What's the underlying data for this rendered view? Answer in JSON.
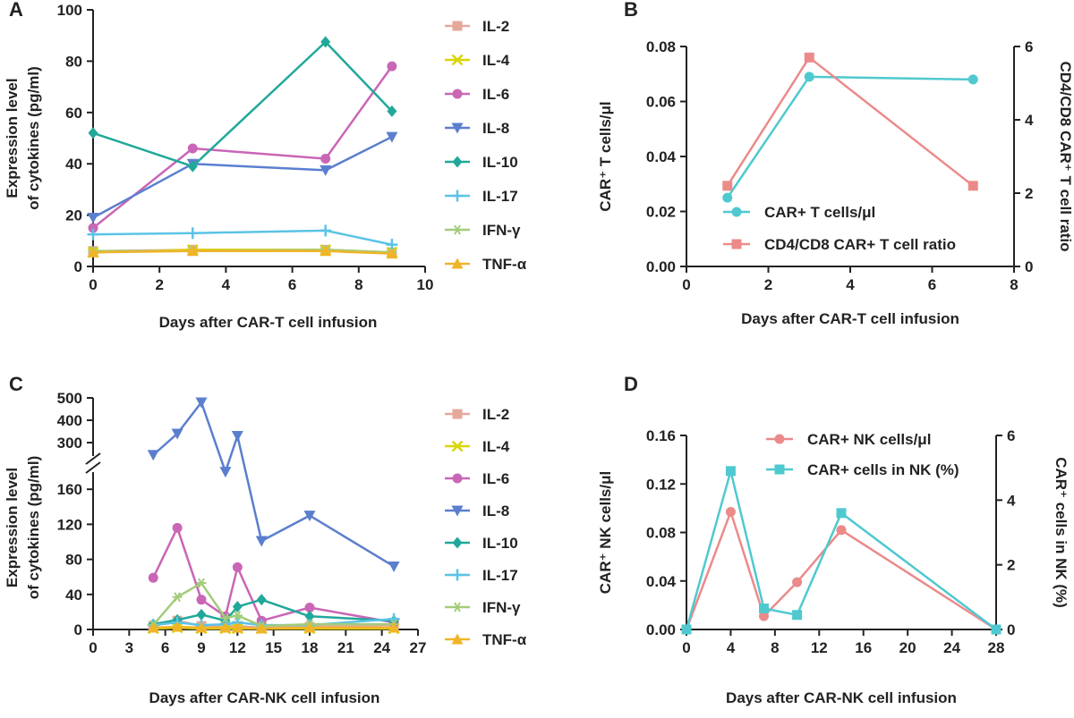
{
  "chart_data": [
    {
      "panel": "A",
      "type": "line",
      "xlabel": "Days after CAR-T cell infusion",
      "ylabel": [
        "Expression level",
        "of cytokines (pg/ml)"
      ],
      "xlim": [
        0,
        10
      ],
      "ylim": [
        0,
        100
      ],
      "xticks": [
        "0",
        "2",
        "4",
        "6",
        "8",
        "10"
      ],
      "yticks": [
        "0",
        "20",
        "40",
        "60",
        "80",
        "100"
      ],
      "x": [
        0,
        3,
        7,
        9
      ],
      "series": [
        {
          "name": "IL-2",
          "color": "#e6a89a",
          "marker": "square",
          "values": [
            6,
            6.5,
            6.5,
            5.5
          ]
        },
        {
          "name": "IL-4",
          "color": "#d9d600",
          "marker": "x",
          "values": [
            5.5,
            6.5,
            6.5,
            5.5
          ]
        },
        {
          "name": "IL-6",
          "color": "#c966b6",
          "marker": "circle",
          "values": [
            15,
            46,
            42,
            78
          ]
        },
        {
          "name": "IL-8",
          "color": "#5b7fcf",
          "marker": "tri-down",
          "values": [
            19,
            40,
            37.5,
            50.5
          ]
        },
        {
          "name": "IL-10",
          "color": "#21a89a",
          "marker": "diamond",
          "values": [
            52,
            39,
            87.5,
            60.5
          ]
        },
        {
          "name": "IL-17",
          "color": "#5bc3e6",
          "marker": "plus",
          "values": [
            12.5,
            13,
            14,
            8.5
          ]
        },
        {
          "name": "IFN-γ",
          "color": "#a3cc7a",
          "marker": "star",
          "values": [
            6,
            6,
            6.5,
            5.5
          ]
        },
        {
          "name": "TNF-α",
          "color": "#f0b428",
          "marker": "tri-up",
          "values": [
            5.5,
            6,
            6,
            5
          ]
        }
      ]
    },
    {
      "panel": "B",
      "type": "line",
      "xlabel": "Days after CAR-T cell infusion",
      "ylabel": "CAR⁺ T cells/μl",
      "ylabel_right": "CD4/CD8 CAR⁺ T cell ratio",
      "xlim": [
        0,
        8
      ],
      "ylim": [
        0,
        0.08
      ],
      "ylim_right": [
        0,
        6
      ],
      "xticks": [
        "0",
        "2",
        "4",
        "6",
        "8"
      ],
      "yticks": [
        "0.00",
        "0.02",
        "0.04",
        "0.06",
        "0.08"
      ],
      "yticks_right": [
        "0",
        "2",
        "4",
        "6"
      ],
      "series": [
        {
          "name": "CAR+ T cells/μl",
          "color": "#4fc9cf",
          "marker": "circle",
          "axis": "left",
          "x": [
            1,
            3,
            7
          ],
          "values": [
            0.025,
            0.069,
            0.068
          ]
        },
        {
          "name": "CD4/CD8 CAR+ T cell ratio",
          "color": "#ec8a8a",
          "marker": "square",
          "axis": "right",
          "x": [
            1,
            3,
            7
          ],
          "values": [
            2.2,
            5.7,
            2.2
          ]
        }
      ]
    },
    {
      "panel": "C",
      "type": "line",
      "xlabel": "Days after CAR-NK cell infusion",
      "ylabel": [
        "Expression level",
        "of cytokines (pg/ml)"
      ],
      "xlim": [
        0,
        27
      ],
      "ylim_lower": [
        0,
        200
      ],
      "ylim_upper": [
        240,
        500
      ],
      "xticks": [
        "0",
        "3",
        "6",
        "9",
        "12",
        "15",
        "18",
        "21",
        "24",
        "27"
      ],
      "yticks_lower": [
        "0",
        "40",
        "80",
        "120",
        "160"
      ],
      "yticks_upper": [
        "300",
        "400",
        "500"
      ],
      "x": [
        5,
        7,
        9,
        11,
        12,
        14,
        18,
        25
      ],
      "series": [
        {
          "name": "IL-2",
          "color": "#e6a89a",
          "marker": "square",
          "values": [
            4,
            10,
            4,
            3,
            4,
            2,
            3,
            5
          ]
        },
        {
          "name": "IL-4",
          "color": "#d9d600",
          "marker": "x",
          "values": [
            1,
            2,
            1,
            1,
            1,
            1,
            1,
            1
          ]
        },
        {
          "name": "IL-6",
          "color": "#c966b6",
          "marker": "circle",
          "values": [
            59,
            116,
            34,
            15,
            71,
            10,
            25,
            8
          ]
        },
        {
          "name": "IL-8",
          "color": "#5b7fcf",
          "marker": "tri-down",
          "values": [
            245,
            340,
            480,
            180,
            330,
            101,
            130,
            72
          ]
        },
        {
          "name": "IL-10",
          "color": "#21a89a",
          "marker": "diamond",
          "values": [
            6,
            11,
            17,
            10,
            26,
            34,
            15,
            10
          ]
        },
        {
          "name": "IL-17",
          "color": "#5bc3e6",
          "marker": "plus",
          "values": [
            5,
            8,
            5,
            6,
            8,
            5,
            5,
            12
          ]
        },
        {
          "name": "IFN-γ",
          "color": "#a3cc7a",
          "marker": "star",
          "values": [
            5,
            37,
            53,
            13,
            16,
            4,
            6,
            6
          ]
        },
        {
          "name": "TNF-α",
          "color": "#f0b428",
          "marker": "tri-up",
          "values": [
            2,
            3,
            2,
            2,
            2,
            1,
            2,
            2
          ]
        }
      ]
    },
    {
      "panel": "D",
      "type": "line",
      "xlabel": "Days after CAR-NK cell infusion",
      "ylabel": "CAR⁺ NK cells/μl",
      "ylabel_right": "CAR⁺ cells in NK (%)",
      "xlim": [
        0,
        28
      ],
      "ylim": [
        0,
        0.16
      ],
      "ylim_right": [
        0,
        6
      ],
      "xticks": [
        "0",
        "4",
        "8",
        "12",
        "16",
        "20",
        "24",
        "28"
      ],
      "yticks": [
        "0.00",
        "0.04",
        "0.08",
        "0.12",
        "0.16"
      ],
      "yticks_right": [
        "0",
        "2",
        "4",
        "6"
      ],
      "series": [
        {
          "name": "CAR+ NK cells/μl",
          "color": "#ec8a8a",
          "marker": "circle",
          "axis": "left",
          "x": [
            0,
            4,
            7,
            10,
            14,
            28
          ],
          "values": [
            0,
            0.097,
            0.011,
            0.039,
            0.082,
            0
          ]
        },
        {
          "name": "CAR+ cells in NK (%)",
          "color": "#4fc9cf",
          "marker": "square",
          "axis": "right",
          "x": [
            0,
            4,
            7,
            10,
            14,
            28
          ],
          "values": [
            0,
            4.9,
            0.65,
            0.45,
            3.6,
            0
          ]
        }
      ]
    }
  ]
}
